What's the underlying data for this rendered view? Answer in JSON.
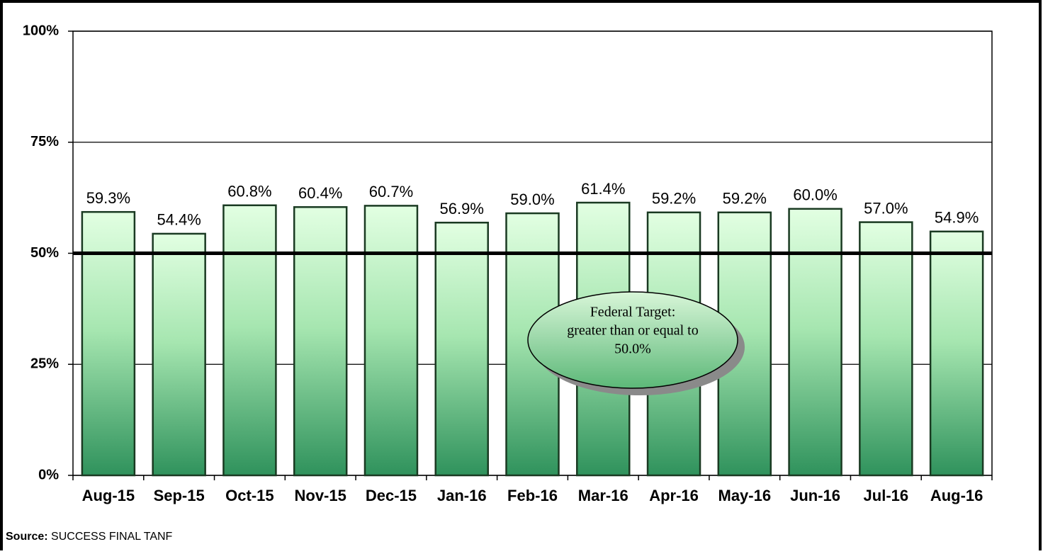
{
  "chart_data": {
    "type": "bar",
    "categories": [
      "Aug-15",
      "Sep-15",
      "Oct-15",
      "Nov-15",
      "Dec-15",
      "Jan-16",
      "Feb-16",
      "Mar-16",
      "Apr-16",
      "May-16",
      "Jun-16",
      "Jul-16",
      "Aug-16"
    ],
    "values": [
      59.3,
      54.4,
      60.8,
      60.4,
      60.7,
      56.9,
      59.0,
      61.4,
      59.2,
      59.2,
      60.0,
      57.0,
      54.9
    ],
    "value_labels": [
      "59.3%",
      "54.4%",
      "60.8%",
      "60.4%",
      "60.7%",
      "56.9%",
      "59.0%",
      "61.4%",
      "59.2%",
      "59.2%",
      "60.0%",
      "57.0%",
      "54.9%"
    ],
    "color": "#3a9e66",
    "ylim": [
      0,
      100
    ],
    "yticks": [
      {
        "value": 0,
        "label": "0%"
      },
      {
        "value": 25,
        "label": "25%"
      },
      {
        "value": 50,
        "label": "50%"
      },
      {
        "value": 75,
        "label": "75%"
      },
      {
        "value": 100,
        "label": "100%"
      }
    ],
    "grid": true,
    "target": 50,
    "annotation": [
      "Federal Target:",
      "greater than or equal to",
      "50.0%"
    ],
    "source_label": "Source:",
    "source": "SUCCESS FINAL TANF"
  }
}
